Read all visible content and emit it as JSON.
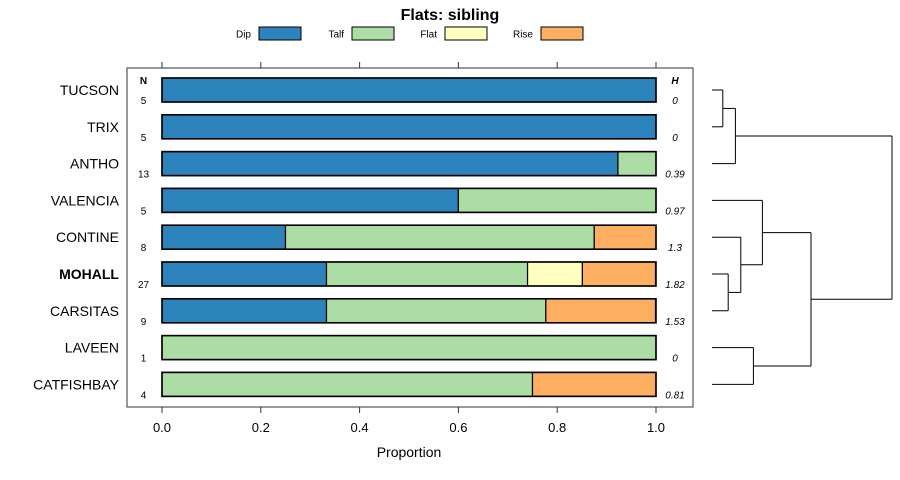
{
  "chart_data": {
    "type": "bar",
    "orientation": "horizontal",
    "stacked": true,
    "title": "Flats: sibling",
    "xlabel": "Proportion",
    "ylabel": "",
    "xlim": [
      0,
      1
    ],
    "x_ticks": [
      "0.0",
      "0.2",
      "0.4",
      "0.6",
      "0.8",
      "1.0"
    ],
    "x_tick_values": [
      0,
      0.2,
      0.4,
      0.6,
      0.8,
      1.0
    ],
    "n_header": "N",
    "h_header": "H",
    "highlight_category": "MOHALL",
    "categories": [
      "TUCSON",
      "TRIX",
      "ANTHO",
      "VALENCIA",
      "CONTINE",
      "MOHALL",
      "CARSITAS",
      "LAVEEN",
      "CATFISHBAY"
    ],
    "n": [
      "5",
      "5",
      "13",
      "5",
      "8",
      "27",
      "9",
      "1",
      "4"
    ],
    "h": [
      "0",
      "0",
      "0.39",
      "0.97",
      "1.3",
      "1.82",
      "1.53",
      "0",
      "0.81"
    ],
    "series": [
      {
        "name": "Dip",
        "color": "#2c83bc",
        "values": [
          1.0,
          1.0,
          0.923,
          0.6,
          0.25,
          0.333,
          0.333,
          0.0,
          0.0
        ]
      },
      {
        "name": "Talf",
        "color": "#abdda4",
        "values": [
          0.0,
          0.0,
          0.077,
          0.4,
          0.625,
          0.407,
          0.444,
          1.0,
          0.75
        ]
      },
      {
        "name": "Flat",
        "color": "#ffffbf",
        "values": [
          0.0,
          0.0,
          0.0,
          0.0,
          0.0,
          0.111,
          0.0,
          0.0,
          0.0
        ]
      },
      {
        "name": "Rise",
        "color": "#fdae61",
        "values": [
          0.0,
          0.0,
          0.0,
          0.0,
          0.125,
          0.148,
          0.222,
          0.0,
          0.25
        ]
      }
    ],
    "dendrogram": {
      "leaves": [
        "TUCSON",
        "TRIX",
        "ANTHO",
        "VALENCIA",
        "CONTINE",
        "MOHALL",
        "CARSITAS",
        "LAVEEN",
        "CATFISHBAY"
      ],
      "merges": [
        {
          "left": "TUCSON",
          "right": "TRIX",
          "height": 0.06
        },
        {
          "left": "(TUCSON,TRIX)",
          "right": "ANTHO",
          "height": 0.13
        },
        {
          "left": "MOHALL",
          "right": "CARSITAS",
          "height": 0.09
        },
        {
          "left": "CONTINE",
          "right": "(MOHALL,CARSITAS)",
          "height": 0.16
        },
        {
          "left": "VALENCIA",
          "right": "(CONTINE,MOHALL,CARSITAS)",
          "height": 0.28
        },
        {
          "left": "LAVEEN",
          "right": "CATFISHBAY",
          "height": 0.23
        },
        {
          "left": "(VALENCIA..CARSITAS)",
          "right": "(LAVEEN,CATFISHBAY)",
          "height": 0.55
        },
        {
          "left": "(TUCSON,TRIX,ANTHO)",
          "right": "(VALENCIA..CATFISHBAY)",
          "height": 1.0
        }
      ]
    }
  }
}
